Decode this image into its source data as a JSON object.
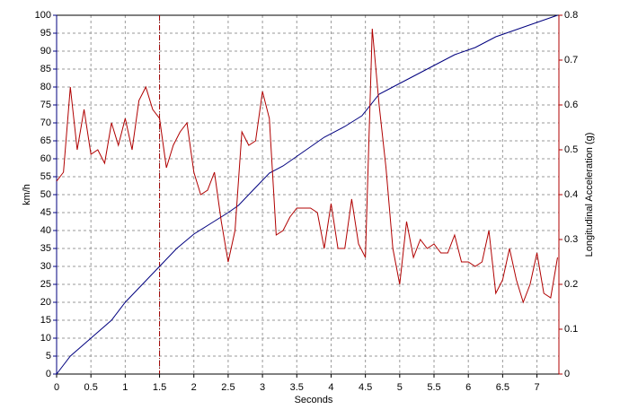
{
  "chart_data": {
    "type": "line",
    "x_label": "Seconds",
    "y_label": "km/h",
    "y2_label": "Longitudinal Acceleration (g)",
    "xlim": [
      0,
      7.32
    ],
    "xticks": [
      0,
      0.5,
      1,
      1.5,
      2,
      2.5,
      3,
      3.5,
      4,
      4.5,
      5,
      5.5,
      6,
      6.5,
      7
    ],
    "ylim": [
      0,
      100
    ],
    "yticks": [
      0,
      5,
      10,
      15,
      20,
      25,
      30,
      35,
      40,
      45,
      50,
      55,
      60,
      65,
      70,
      75,
      80,
      85,
      90,
      95,
      100
    ],
    "y2lim": [
      0,
      0.8
    ],
    "y2ticks": [
      0,
      0.1,
      0.2,
      0.3,
      0.4,
      0.5,
      0.6,
      0.7,
      0.8
    ],
    "grid": true,
    "marker_x": 1.5,
    "marker_color": "#a00000",
    "y_color": "#00007f",
    "y2_color": "#b00000",
    "series": [
      {
        "color": "#00007f",
        "axis": "y",
        "x": [
          0,
          0.2,
          0.5,
          0.8,
          1.0,
          1.25,
          1.5,
          1.75,
          2.0,
          2.25,
          2.5,
          2.65,
          2.9,
          3.1,
          3.3,
          3.6,
          3.9,
          4.2,
          4.45,
          4.7,
          4.9,
          5.2,
          5.5,
          5.8,
          6.1,
          6.4,
          6.7,
          7.0,
          7.3
        ],
        "values": [
          0,
          5,
          10,
          15,
          20,
          25,
          30,
          35,
          39,
          42,
          45,
          47,
          52,
          56,
          58,
          62,
          66,
          69,
          72,
          78,
          80,
          83,
          86,
          89,
          91,
          94,
          96,
          98,
          100
        ]
      },
      {
        "color": "#b00000",
        "axis": "y2",
        "x": [
          0,
          0.1,
          0.2,
          0.3,
          0.4,
          0.5,
          0.6,
          0.7,
          0.8,
          0.9,
          1.0,
          1.1,
          1.2,
          1.3,
          1.4,
          1.5,
          1.6,
          1.7,
          1.8,
          1.9,
          2.0,
          2.1,
          2.2,
          2.3,
          2.4,
          2.5,
          2.6,
          2.7,
          2.8,
          2.9,
          3.0,
          3.1,
          3.2,
          3.3,
          3.4,
          3.5,
          3.6,
          3.7,
          3.8,
          3.9,
          4.0,
          4.1,
          4.2,
          4.3,
          4.4,
          4.5,
          4.6,
          4.7,
          4.8,
          4.9,
          5.0,
          5.1,
          5.2,
          5.3,
          5.4,
          5.5,
          5.6,
          5.7,
          5.8,
          5.9,
          6.0,
          6.1,
          6.2,
          6.3,
          6.4,
          6.5,
          6.6,
          6.7,
          6.8,
          6.9,
          7.0,
          7.1,
          7.2,
          7.3
        ],
        "values": [
          0.43,
          0.45,
          0.64,
          0.5,
          0.59,
          0.49,
          0.5,
          0.47,
          0.56,
          0.51,
          0.57,
          0.5,
          0.61,
          0.64,
          0.59,
          0.57,
          0.46,
          0.51,
          0.54,
          0.56,
          0.45,
          0.4,
          0.41,
          0.45,
          0.34,
          0.25,
          0.32,
          0.54,
          0.51,
          0.52,
          0.63,
          0.57,
          0.31,
          0.32,
          0.35,
          0.37,
          0.37,
          0.37,
          0.36,
          0.28,
          0.38,
          0.28,
          0.28,
          0.39,
          0.29,
          0.26,
          0.77,
          0.6,
          0.46,
          0.28,
          0.2,
          0.34,
          0.26,
          0.3,
          0.28,
          0.29,
          0.27,
          0.27,
          0.31,
          0.25,
          0.25,
          0.24,
          0.25,
          0.32,
          0.18,
          0.21,
          0.28,
          0.21,
          0.16,
          0.2,
          0.27,
          0.18,
          0.17,
          0.26
        ]
      }
    ]
  }
}
